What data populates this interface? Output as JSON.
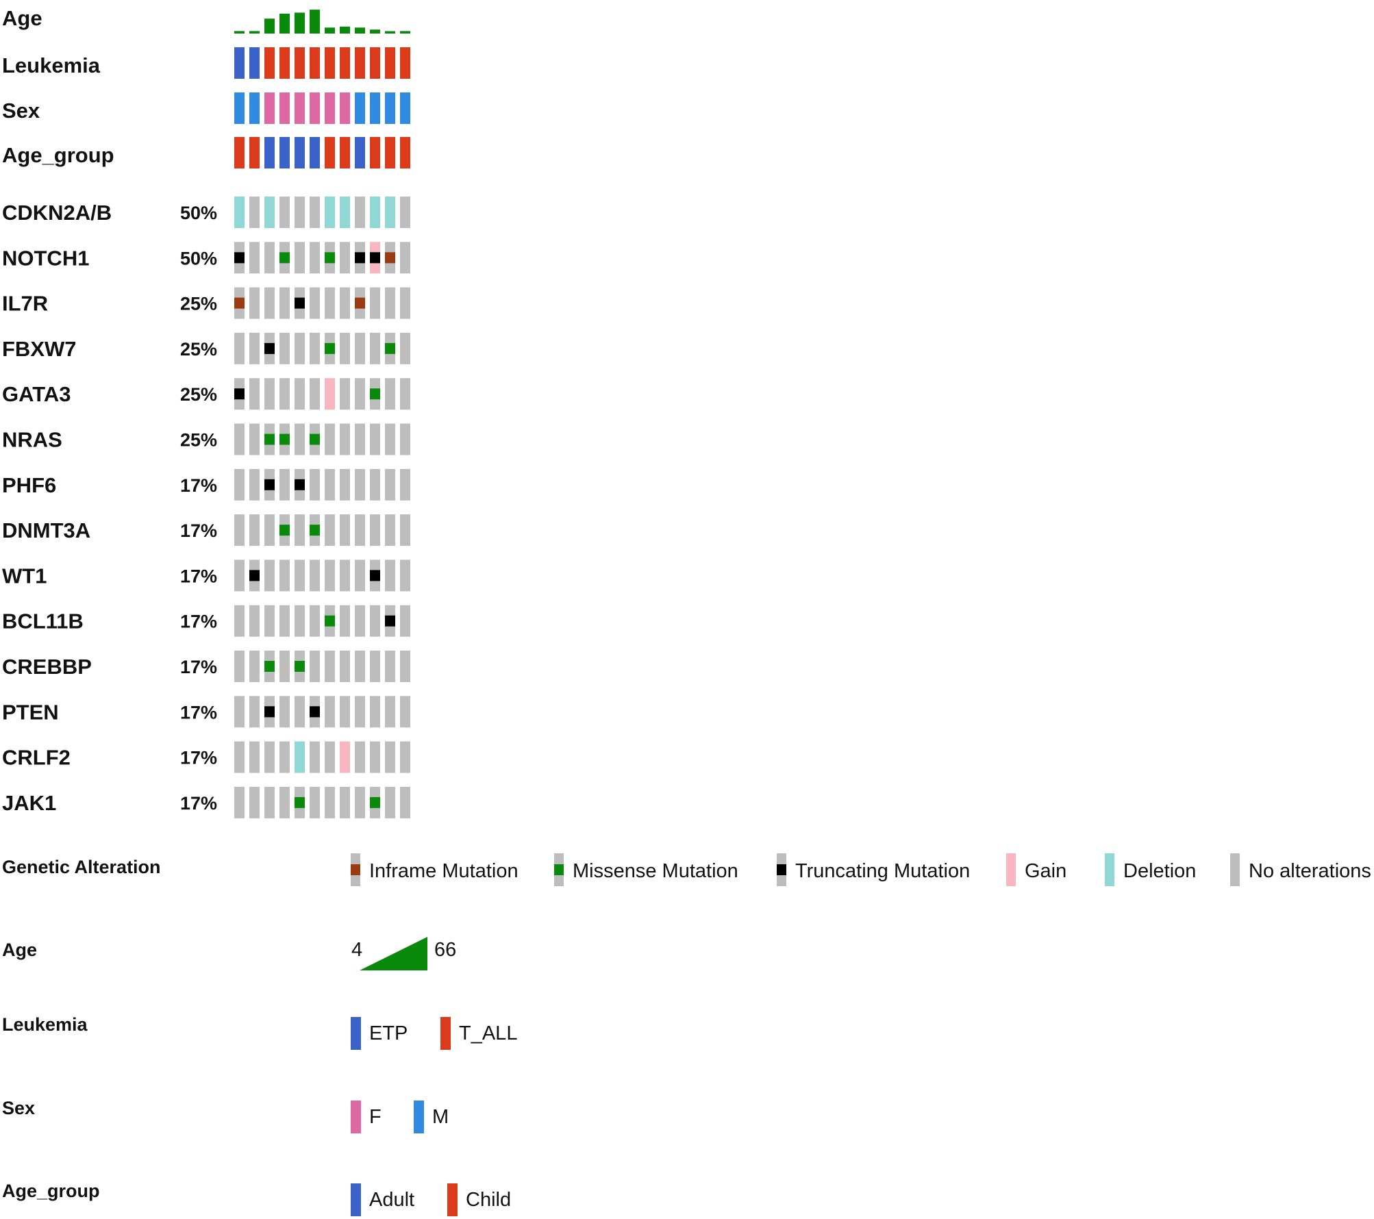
{
  "chart_data": {
    "type": "oncoprint",
    "samples": 12,
    "clinical_tracks": [
      {
        "name": "Age",
        "kind": "bar",
        "min": 4,
        "max": 66,
        "values": [
          5,
          5,
          30,
          40,
          42,
          48,
          12,
          14,
          12,
          8,
          0,
          5
        ]
      },
      {
        "name": "Leukemia",
        "kind": "category",
        "values": [
          "ETP",
          "ETP",
          "T_ALL",
          "T_ALL",
          "T_ALL",
          "T_ALL",
          "T_ALL",
          "T_ALL",
          "T_ALL",
          "T_ALL",
          "T_ALL",
          "T_ALL"
        ]
      },
      {
        "name": "Sex",
        "kind": "category",
        "values": [
          "M",
          "M",
          "F",
          "F",
          "F",
          "F",
          "F",
          "F",
          "M",
          "M",
          "M",
          "M"
        ]
      },
      {
        "name": "Age_group",
        "kind": "category",
        "values": [
          "Child",
          "Child",
          "Adult",
          "Adult",
          "Adult",
          "Adult",
          "Child",
          "Child",
          "Adult",
          "Child",
          "Child",
          "Child"
        ]
      }
    ],
    "genes": [
      {
        "name": "CDKN2A/B",
        "pct": "50%",
        "cells": [
          "del",
          "",
          "del",
          "",
          "",
          "",
          "del",
          "del",
          "",
          "del",
          "del",
          ""
        ]
      },
      {
        "name": "NOTCH1",
        "pct": "50%",
        "cells": [
          "trunc",
          "",
          "",
          "miss",
          "",
          "",
          "miss",
          "",
          "trunc",
          "gain+trunc",
          "inframe",
          ""
        ]
      },
      {
        "name": "IL7R",
        "pct": "25%",
        "cells": [
          "inframe",
          "",
          "",
          "",
          "trunc",
          "",
          "",
          "",
          "inframe",
          "",
          "",
          ""
        ]
      },
      {
        "name": "FBXW7",
        "pct": "25%",
        "cells": [
          "",
          "",
          "trunc",
          "",
          "",
          "",
          "miss",
          "",
          "",
          "",
          "miss",
          ""
        ]
      },
      {
        "name": "GATA3",
        "pct": "25%",
        "cells": [
          "trunc",
          "",
          "",
          "",
          "",
          "",
          "gain",
          "",
          "",
          "miss",
          "",
          ""
        ]
      },
      {
        "name": "NRAS",
        "pct": "25%",
        "cells": [
          "",
          "",
          "miss",
          "miss",
          "",
          "miss",
          "",
          "",
          "",
          "",
          "",
          ""
        ]
      },
      {
        "name": "PHF6",
        "pct": "17%",
        "cells": [
          "",
          "",
          "trunc",
          "",
          "trunc",
          "",
          "",
          "",
          "",
          "",
          "",
          ""
        ]
      },
      {
        "name": "DNMT3A",
        "pct": "17%",
        "cells": [
          "",
          "",
          "",
          "miss",
          "",
          "miss",
          "",
          "",
          "",
          "",
          "",
          ""
        ]
      },
      {
        "name": "WT1",
        "pct": "17%",
        "cells": [
          "",
          "trunc",
          "",
          "",
          "",
          "",
          "",
          "",
          "",
          "trunc",
          "",
          ""
        ]
      },
      {
        "name": "BCL11B",
        "pct": "17%",
        "cells": [
          "",
          "",
          "",
          "",
          "",
          "",
          "miss",
          "",
          "",
          "",
          "trunc",
          ""
        ]
      },
      {
        "name": "CREBBP",
        "pct": "17%",
        "cells": [
          "",
          "",
          "miss",
          "",
          "miss",
          "",
          "",
          "",
          "",
          "",
          "",
          ""
        ]
      },
      {
        "name": "PTEN",
        "pct": "17%",
        "cells": [
          "",
          "",
          "trunc",
          "",
          "",
          "trunc",
          "",
          "",
          "",
          "",
          "",
          ""
        ]
      },
      {
        "name": "CRLF2",
        "pct": "17%",
        "cells": [
          "",
          "",
          "",
          "",
          "del",
          "",
          "",
          "gain",
          "",
          "",
          "",
          ""
        ]
      },
      {
        "name": "JAK1",
        "pct": "17%",
        "cells": [
          "",
          "",
          "",
          "",
          "miss",
          "",
          "",
          "",
          "",
          "miss",
          "",
          ""
        ]
      }
    ],
    "legend": {
      "genetic_alteration": {
        "title": "Genetic Alteration",
        "items": [
          {
            "key": "inframe",
            "label": "Inframe Mutation"
          },
          {
            "key": "miss",
            "label": "Missense Mutation"
          },
          {
            "key": "trunc",
            "label": "Truncating Mutation"
          },
          {
            "key": "gain",
            "label": "Gain"
          },
          {
            "key": "del",
            "label": "Deletion"
          },
          {
            "key": "none",
            "label": "No alterations"
          }
        ]
      },
      "age": {
        "title": "Age",
        "min_label": "4",
        "max_label": "66"
      },
      "leukemia": {
        "title": "Leukemia",
        "items": [
          {
            "key": "ETP",
            "label": "ETP"
          },
          {
            "key": "T_ALL",
            "label": "T_ALL"
          }
        ]
      },
      "sex": {
        "title": "Sex",
        "items": [
          {
            "key": "F",
            "label": "F"
          },
          {
            "key": "M",
            "label": "M"
          }
        ]
      },
      "age_group": {
        "title": "Age_group",
        "items": [
          {
            "key": "Adult",
            "label": "Adult"
          },
          {
            "key": "Child",
            "label": "Child"
          }
        ]
      }
    },
    "colors": {
      "age_bar": "#0a8a0a",
      "ETP": "#3b62c9",
      "T_ALL": "#db3b1b",
      "F": "#dd68a3",
      "M": "#2f8ae0",
      "Adult": "#3b62c9",
      "Child": "#db3b1b",
      "none": "#bdbdbd",
      "del": "#90d8d6",
      "gain": "#f8b6c1",
      "miss": "#0a8a0a",
      "trunc": "#000000",
      "inframe": "#9b3b12"
    }
  }
}
